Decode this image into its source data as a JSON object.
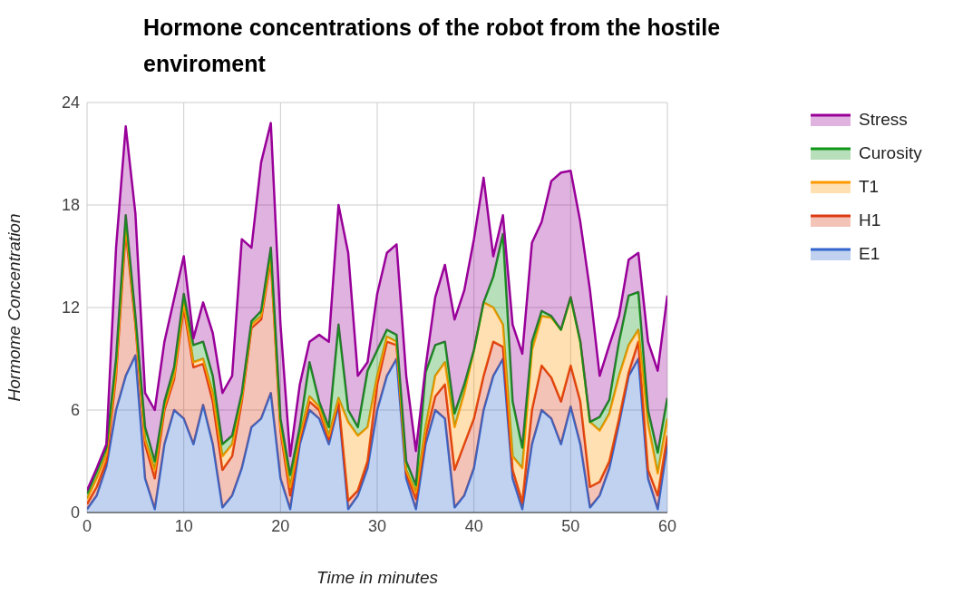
{
  "chart_data": {
    "type": "area",
    "title": "Hormone concentrations of the robot from the hostile enviroment",
    "xlabel": "Time in minutes",
    "ylabel": "Hormome Concentration",
    "stacked": true,
    "grid": true,
    "legend": "right",
    "xlim": [
      0,
      60
    ],
    "xticks": [
      0,
      10,
      20,
      30,
      40,
      50,
      60
    ],
    "ylim": [
      0,
      24
    ],
    "yticks": [
      0,
      6,
      12,
      18,
      24
    ],
    "x": [
      0,
      1,
      2,
      3,
      4,
      5,
      6,
      7,
      8,
      9,
      10,
      11,
      12,
      13,
      14,
      15,
      16,
      17,
      18,
      19,
      20,
      21,
      22,
      23,
      24,
      25,
      26,
      27,
      28,
      29,
      30,
      31,
      32,
      33,
      34,
      35,
      36,
      37,
      38,
      39,
      40,
      41,
      42,
      43,
      44,
      45,
      46,
      47,
      48,
      49,
      50,
      51,
      52,
      53,
      54,
      55,
      56,
      57,
      58,
      59,
      60
    ],
    "series": [
      {
        "name": "E1",
        "color": "#3366cc",
        "values": [
          0.2,
          1,
          2.7,
          6,
          8,
          9.2,
          2,
          0.2,
          4,
          6,
          5.5,
          4,
          6.3,
          4,
          0.3,
          1,
          2.6,
          5,
          5.5,
          7,
          2,
          0.2,
          4,
          6,
          5.5,
          4,
          6.3,
          0.2,
          1,
          2.6,
          6,
          8,
          9,
          2,
          0.2,
          4,
          6,
          5.5,
          0.3,
          1,
          2.6,
          6,
          8,
          9,
          2,
          0.2,
          4,
          6,
          5.5,
          4,
          6.2,
          4,
          0.3,
          1,
          2.6,
          5.2,
          8,
          9,
          2,
          0.2,
          4
        ]
      },
      {
        "name": "H1",
        "color": "#dc3912",
        "values": [
          0.3,
          0.5,
          0.3,
          2,
          8.5,
          1.8,
          2,
          1.8,
          2,
          1.8,
          6.5,
          4.5,
          2.4,
          2.5,
          2.2,
          2.3,
          3.9,
          5.8,
          5.8,
          7.8,
          2.8,
          0.8,
          0.3,
          0.5,
          0.5,
          0.3,
          0.2,
          0.5,
          0.3,
          0.4,
          1.5,
          2,
          0.8,
          0.3,
          0.6,
          0.5,
          0.8,
          2,
          2.2,
          3,
          2.9,
          2,
          2,
          0.7,
          0.5,
          0.4,
          2,
          2.6,
          2.4,
          2.5,
          2.4,
          2.5,
          1.2,
          0.8,
          0.4,
          0.3,
          0.2,
          1,
          0.5,
          0.8,
          0.5
        ]
      },
      {
        "name": "T1",
        "color": "#ff9900",
        "values": [
          0.3,
          0.5,
          0.4,
          0.3,
          0.4,
          0.2,
          0.3,
          0.5,
          0.2,
          0.2,
          0.3,
          0.3,
          0.3,
          0.5,
          0.8,
          0.7,
          0.2,
          0.2,
          0.2,
          0.2,
          0.2,
          0.5,
          0.2,
          0.3,
          0.2,
          0.2,
          0.2,
          4.6,
          3.2,
          2,
          0.5,
          0.3,
          0.2,
          0.2,
          0.4,
          0.5,
          1.2,
          1.3,
          2.5,
          3,
          4,
          4.3,
          2,
          1.3,
          0.8,
          2,
          3.5,
          2.9,
          3.5,
          4.2,
          4,
          3.5,
          3.8,
          3,
          2.8,
          2.5,
          1.6,
          0.7,
          2.7,
          1.3,
          1
        ]
      },
      {
        "name": "Curosity",
        "color": "#109618",
        "values": [
          0.3,
          0.4,
          0.4,
          0.7,
          0.5,
          0.3,
          0.7,
          0.5,
          0.3,
          0.5,
          0.5,
          1,
          1,
          1,
          0.7,
          0.5,
          0.3,
          0.2,
          0.3,
          0.5,
          0.5,
          0.7,
          0.5,
          2,
          0.3,
          0.5,
          4.3,
          0.7,
          0.5,
          3.3,
          1.5,
          0.4,
          0.4,
          0.5,
          0.4,
          3.2,
          1.8,
          1.2,
          0.8,
          0.5,
          0,
          0,
          1.8,
          5.3,
          3.2,
          1.2,
          0.5,
          0.3,
          0.1,
          0,
          0,
          0,
          0,
          0.8,
          0.8,
          2,
          2.9,
          2.2,
          0.8,
          1.2,
          1.2
        ]
      },
      {
        "name": "Stress",
        "color": "#990099",
        "values": [
          0.2,
          0.2,
          0.2,
          6.5,
          5.2,
          6,
          2,
          3,
          3.5,
          4,
          2.2,
          0.4,
          2.3,
          2.5,
          3,
          3.5,
          9,
          4.3,
          8.7,
          7.3,
          5.5,
          1.1,
          2.5,
          1.2,
          3.9,
          5,
          7,
          9.2,
          3,
          0.5,
          3.3,
          4.5,
          5.3,
          5,
          2,
          0.3,
          2.8,
          4.5,
          5.5,
          5.5,
          6.5,
          7.3,
          1.2,
          1.1,
          4.5,
          5.5,
          5.8,
          5.2,
          7.9,
          9.2,
          7.4,
          7,
          7.7,
          2.4,
          3.2,
          1.5,
          2.1,
          2.3,
          4,
          4.8,
          6
        ]
      }
    ]
  }
}
